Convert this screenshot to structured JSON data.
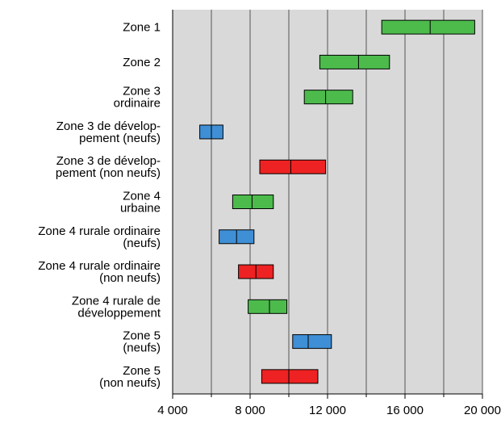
{
  "chart_data": {
    "type": "range-bar",
    "orientation": "horizontal",
    "title": "",
    "xlabel": "",
    "ylabel": "",
    "xlim": [
      4000,
      20000
    ],
    "x_ticks": [
      4000,
      8000,
      12000,
      16000,
      20000
    ],
    "x_tick_labels": [
      "4 000",
      "8 000",
      "12 000",
      "16 000",
      "20 000"
    ],
    "grid": "vertical",
    "background": "#d9d9d9",
    "status_colors": {
      "green": "#4cbb4c",
      "blue": "#3f8fd6",
      "red": "#ee2222"
    },
    "categories": [
      {
        "lines": [
          "Zone 1"
        ],
        "low": 14800,
        "median": 17300,
        "high": 19600,
        "color": "#4cbb4c"
      },
      {
        "lines": [
          "Zone 2"
        ],
        "low": 11600,
        "median": 13600,
        "high": 15200,
        "color": "#4cbb4c"
      },
      {
        "lines": [
          "Zone 3",
          "ordinaire"
        ],
        "low": 10800,
        "median": 11900,
        "high": 13300,
        "color": "#4cbb4c"
      },
      {
        "lines": [
          "Zone 3 de dévelop-",
          "pement (neufs)"
        ],
        "low": 5400,
        "median": 6000,
        "high": 6600,
        "color": "#3f8fd6"
      },
      {
        "lines": [
          "Zone 3 de dévelop-",
          "pement (non neufs)"
        ],
        "low": 8500,
        "median": 10100,
        "high": 11900,
        "color": "#ee2222"
      },
      {
        "lines": [
          "Zone 4",
          "urbaine"
        ],
        "low": 7100,
        "median": 8100,
        "high": 9200,
        "color": "#4cbb4c"
      },
      {
        "lines": [
          "Zone 4 rurale ordinaire",
          "(neufs)"
        ],
        "low": 6400,
        "median": 7300,
        "high": 8200,
        "color": "#3f8fd6"
      },
      {
        "lines": [
          "Zone 4 rurale ordinaire",
          "(non neufs)"
        ],
        "low": 7400,
        "median": 8300,
        "high": 9200,
        "color": "#ee2222"
      },
      {
        "lines": [
          "Zone 4 rurale de",
          "développement"
        ],
        "low": 7900,
        "median": 9000,
        "high": 9900,
        "color": "#4cbb4c"
      },
      {
        "lines": [
          "Zone 5",
          "(neufs)"
        ],
        "low": 10200,
        "median": 11000,
        "high": 12200,
        "color": "#3f8fd6"
      },
      {
        "lines": [
          "Zone 5",
          "(non neufs)"
        ],
        "low": 8600,
        "median": 10000,
        "high": 11500,
        "color": "#ee2222"
      }
    ]
  }
}
